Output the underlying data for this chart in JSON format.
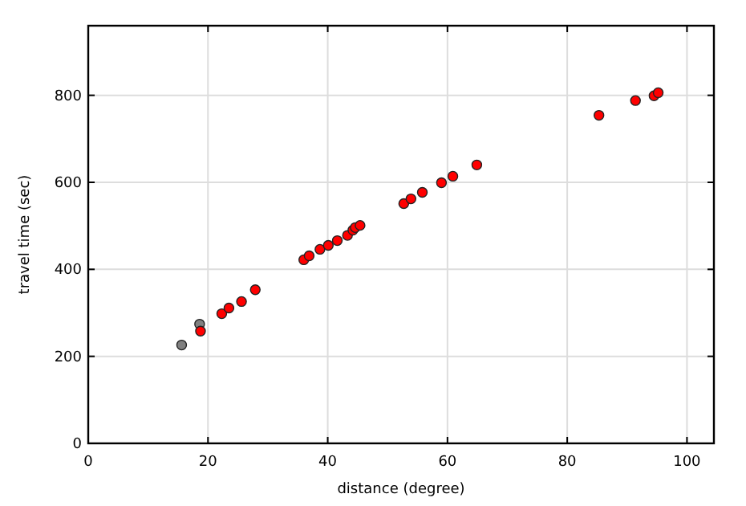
{
  "chart_data": {
    "type": "scatter",
    "xlabel": "distance (degree)",
    "ylabel": "travel time (sec)",
    "xlim": [
      0,
      104.5
    ],
    "ylim": [
      0,
      960
    ],
    "xticks": [
      0,
      20,
      40,
      60,
      80,
      100
    ],
    "yticks": [
      0,
      200,
      400,
      600,
      800
    ],
    "grid": true,
    "marker": "circle",
    "series": [
      {
        "color": "#808080",
        "x": [
          15.6,
          18.6
        ],
        "values": [
          226,
          274
        ]
      },
      {
        "color": "#ff0000",
        "x": [
          18.75,
          22.3,
          23.5,
          25.6,
          27.9,
          36.0,
          36.9,
          38.7,
          40.1,
          41.6,
          43.3,
          44.2,
          44.6,
          45.4,
          52.7,
          53.9,
          55.8,
          59.0,
          60.9,
          64.9,
          85.3,
          91.4,
          94.5,
          95.2
        ],
        "values": [
          258,
          298,
          311,
          326,
          353,
          422,
          431,
          446,
          455,
          466,
          478,
          490,
          496,
          501,
          551,
          562,
          577,
          599,
          614,
          640,
          754,
          788,
          799,
          806
        ]
      }
    ]
  }
}
